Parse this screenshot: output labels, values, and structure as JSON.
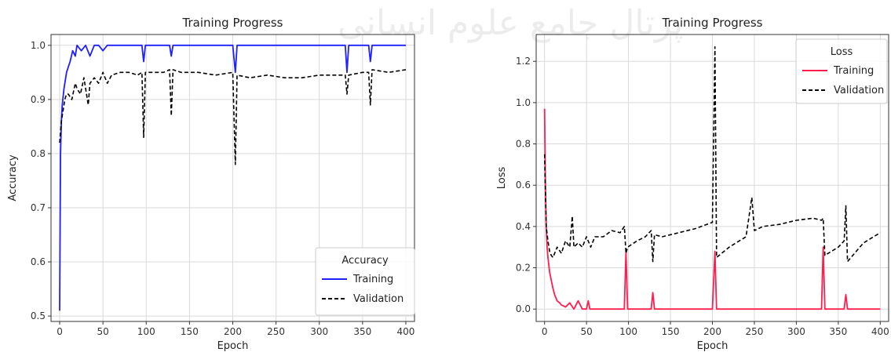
{
  "watermark": "پرتال جامع علوم انسانی",
  "colors": {
    "training_acc": "#1f1fff",
    "training_loss": "#ff1e4e",
    "validation": "#000000",
    "grid": "#d9d9d9",
    "axes": "#333333"
  },
  "chart_data": [
    {
      "type": "line",
      "title": "Training Progress",
      "xlabel": "Epoch",
      "ylabel": "Accuracy",
      "xlim": [
        -10,
        410
      ],
      "ylim": [
        0.49,
        1.02
      ],
      "xticks": [
        0,
        50,
        100,
        150,
        200,
        250,
        300,
        350,
        400
      ],
      "yticks": [
        0.5,
        0.6,
        0.7,
        0.8,
        0.9,
        1.0
      ],
      "ytick_labels": [
        "0.5",
        "0.6",
        "0.7",
        "0.8",
        "0.9",
        "1.0"
      ],
      "grid": true,
      "legend": {
        "title": "Accuracy",
        "placement": "lower-right"
      },
      "series": [
        {
          "name": "Training",
          "style": "solid",
          "color": "#1f1fff",
          "x": [
            0,
            1,
            2,
            3,
            5,
            8,
            10,
            12,
            15,
            18,
            20,
            25,
            30,
            35,
            40,
            45,
            50,
            55,
            60,
            80,
            95,
            97,
            99,
            110,
            127,
            129,
            131,
            150,
            200,
            203,
            205,
            220,
            300,
            330,
            332,
            334,
            350,
            357,
            359,
            361,
            380,
            400
          ],
          "y": [
            0.51,
            0.8,
            0.86,
            0.89,
            0.92,
            0.95,
            0.96,
            0.97,
            0.99,
            0.98,
            1.0,
            0.99,
            1.0,
            0.98,
            1.0,
            1.0,
            0.99,
            1.0,
            1.0,
            1.0,
            1.0,
            0.97,
            1.0,
            1.0,
            1.0,
            0.98,
            1.0,
            1.0,
            1.0,
            0.95,
            1.0,
            1.0,
            1.0,
            1.0,
            0.95,
            1.0,
            1.0,
            1.0,
            0.97,
            1.0,
            1.0,
            1.0
          ]
        },
        {
          "name": "Validation",
          "style": "dashed",
          "color": "#000000",
          "x": [
            0,
            2,
            4,
            6,
            8,
            10,
            14,
            18,
            20,
            24,
            28,
            30,
            33,
            35,
            40,
            45,
            50,
            55,
            60,
            70,
            80,
            90,
            95,
            97,
            99,
            110,
            120,
            127,
            129,
            131,
            140,
            160,
            180,
            200,
            203,
            205,
            220,
            240,
            260,
            280,
            300,
            320,
            330,
            332,
            334,
            350,
            357,
            359,
            361,
            380,
            400
          ],
          "y": [
            0.82,
            0.86,
            0.88,
            0.9,
            0.91,
            0.91,
            0.9,
            0.93,
            0.92,
            0.91,
            0.94,
            0.92,
            0.89,
            0.93,
            0.94,
            0.93,
            0.95,
            0.93,
            0.945,
            0.95,
            0.95,
            0.945,
            0.95,
            0.83,
            0.95,
            0.95,
            0.95,
            0.955,
            0.87,
            0.955,
            0.95,
            0.95,
            0.945,
            0.95,
            0.78,
            0.945,
            0.94,
            0.945,
            0.94,
            0.94,
            0.945,
            0.945,
            0.945,
            0.91,
            0.945,
            0.95,
            0.95,
            0.89,
            0.955,
            0.95,
            0.955
          ]
        }
      ]
    },
    {
      "type": "line",
      "title": "Training Progress",
      "xlabel": "Epoch",
      "ylabel": "Loss",
      "xlim": [
        -10,
        410
      ],
      "ylim": [
        -0.06,
        1.33
      ],
      "xticks": [
        0,
        50,
        100,
        150,
        200,
        250,
        300,
        350,
        400
      ],
      "yticks": [
        0.0,
        0.2,
        0.4,
        0.6,
        0.8,
        1.0,
        1.2
      ],
      "ytick_labels": [
        "0.0",
        "0.2",
        "0.4",
        "0.6",
        "0.8",
        "1.0",
        "1.2"
      ],
      "grid": true,
      "legend": {
        "title": "Loss",
        "placement": "upper-right"
      },
      "series": [
        {
          "name": "Training",
          "style": "solid",
          "color": "#ff1e4e",
          "x": [
            0,
            1,
            2,
            3,
            4,
            6,
            8,
            10,
            12,
            15,
            18,
            20,
            25,
            30,
            35,
            40,
            45,
            50,
            52,
            54,
            60,
            90,
            95,
            97,
            99,
            110,
            127,
            129,
            131,
            150,
            200,
            203,
            205,
            220,
            300,
            330,
            332,
            334,
            350,
            357,
            359,
            361,
            380,
            400
          ],
          "y": [
            0.97,
            0.6,
            0.4,
            0.3,
            0.25,
            0.18,
            0.14,
            0.1,
            0.07,
            0.04,
            0.03,
            0.02,
            0.01,
            0.03,
            0.0,
            0.04,
            0.0,
            0.0,
            0.04,
            0.0,
            0.0,
            0.0,
            0.0,
            0.28,
            0.0,
            0.0,
            0.0,
            0.08,
            0.0,
            0.0,
            0.0,
            0.28,
            0.0,
            0.0,
            0.0,
            0.0,
            0.3,
            0.0,
            0.0,
            0.0,
            0.07,
            0.0,
            0.0,
            0.0
          ]
        },
        {
          "name": "Validation",
          "style": "dashed",
          "color": "#000000",
          "x": [
            0,
            2,
            4,
            6,
            8,
            10,
            15,
            20,
            25,
            30,
            33,
            35,
            40,
            45,
            50,
            55,
            60,
            70,
            80,
            90,
            95,
            97,
            99,
            110,
            120,
            127,
            129,
            131,
            140,
            160,
            180,
            200,
            203,
            205,
            220,
            240,
            247,
            250,
            260,
            280,
            300,
            320,
            330,
            332,
            334,
            350,
            357,
            359,
            361,
            380,
            400
          ],
          "y": [
            0.75,
            0.4,
            0.33,
            0.28,
            0.26,
            0.25,
            0.3,
            0.27,
            0.33,
            0.3,
            0.45,
            0.3,
            0.32,
            0.3,
            0.35,
            0.3,
            0.35,
            0.35,
            0.38,
            0.37,
            0.4,
            0.27,
            0.3,
            0.33,
            0.35,
            0.38,
            0.23,
            0.36,
            0.35,
            0.37,
            0.39,
            0.42,
            1.27,
            0.25,
            0.3,
            0.35,
            0.54,
            0.38,
            0.4,
            0.41,
            0.43,
            0.44,
            0.43,
            0.44,
            0.26,
            0.3,
            0.33,
            0.5,
            0.23,
            0.32,
            0.37
          ]
        }
      ]
    }
  ]
}
